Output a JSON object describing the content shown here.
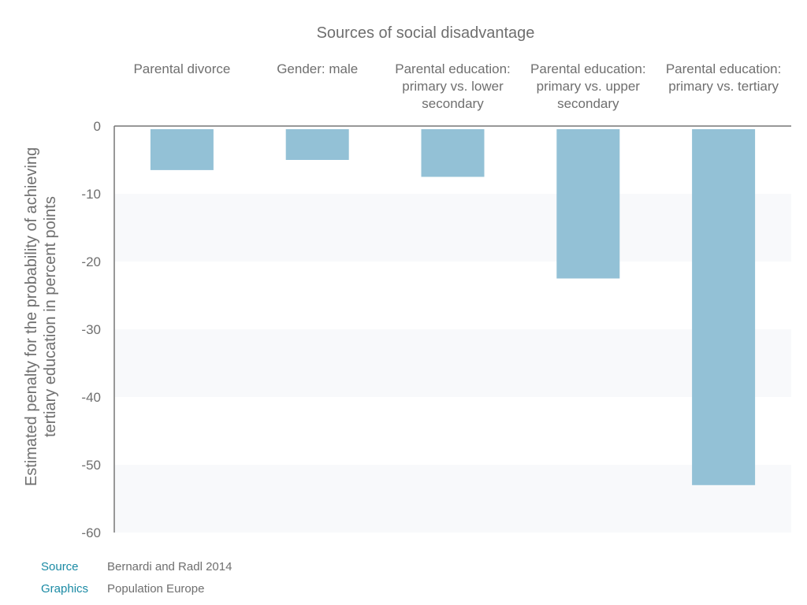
{
  "chart_data": {
    "type": "bar",
    "title": "Sources of social disadvantage",
    "categories": [
      [
        "Parental divorce"
      ],
      [
        "Gender: male"
      ],
      [
        "Parental education:",
        "primary vs. lower",
        "secondary"
      ],
      [
        "Parental education:",
        "primary vs. upper",
        "secondary"
      ],
      [
        "Parental education:",
        "primary vs. tertiary"
      ]
    ],
    "values": [
      -6.5,
      -5.0,
      -7.5,
      -22.5,
      -53.0
    ],
    "ylabel_lines": [
      "Estimated penalty for the probability of achieving",
      "tertiary education in percent points"
    ],
    "ylim": [
      -60,
      0
    ],
    "yticks": [
      0,
      -10,
      -20,
      -30,
      -40,
      -50,
      -60
    ],
    "colors": {
      "bar": "#93c1d6",
      "band": "#f8f9fb",
      "axis": "#777777",
      "tick_text": "#6f6f6f"
    }
  },
  "footer": {
    "source_label": "Source",
    "source_value": "Bernardi and Radl 2014",
    "graphics_label": "Graphics",
    "graphics_value": "Population Europe"
  }
}
